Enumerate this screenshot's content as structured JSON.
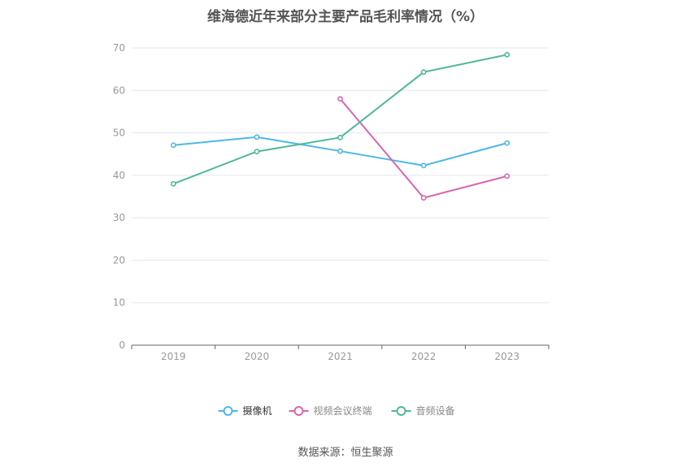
{
  "chart_data": {
    "type": "line",
    "title": "维海德近年来部分主要产品毛利率情况（%）",
    "categories": [
      "2019",
      "2020",
      "2021",
      "2022",
      "2023"
    ],
    "ylim": [
      0,
      70
    ],
    "yticks": [
      0,
      10,
      20,
      30,
      40,
      50,
      60,
      70
    ],
    "grid": true,
    "legend_position": "bottom",
    "series": [
      {
        "name": "摄像机",
        "color": "#4cb8ea",
        "values": [
          47.1,
          49.0,
          45.7,
          42.3,
          47.6
        ]
      },
      {
        "name": "视频会议终端",
        "color": "#d866b0",
        "values": [
          null,
          null,
          58.0,
          34.7,
          39.8
        ]
      },
      {
        "name": "音频设备",
        "color": "#4fb89a",
        "values": [
          38.0,
          45.6,
          48.9,
          64.3,
          68.4
        ]
      }
    ]
  },
  "source": "数据来源：恒生聚源"
}
